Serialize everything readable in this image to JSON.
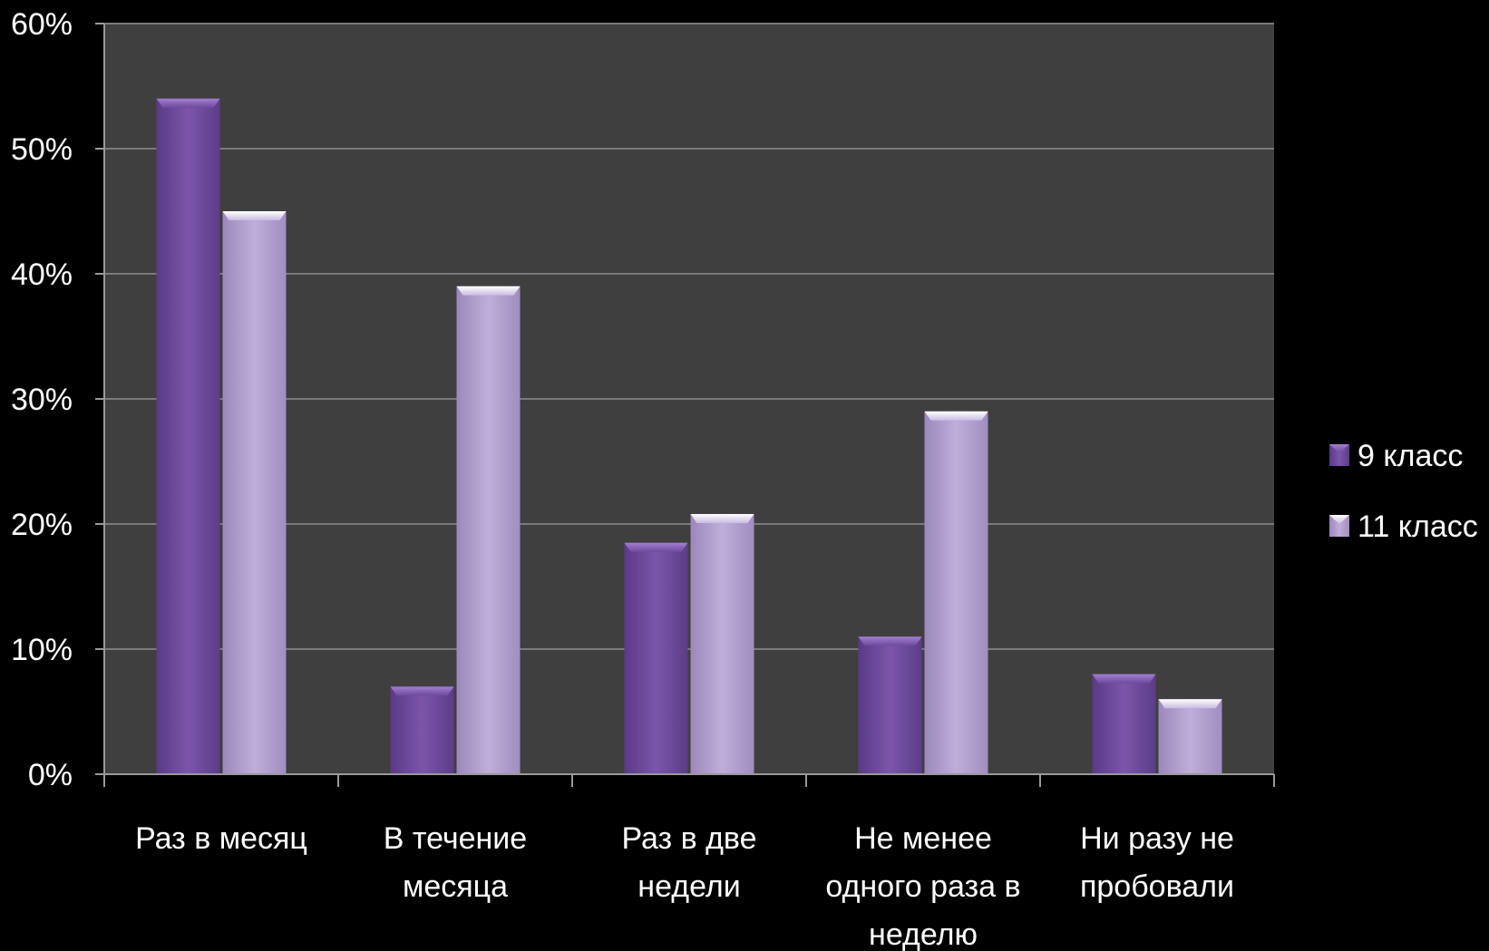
{
  "chart_data": {
    "type": "bar",
    "categories": [
      "Раз в месяц",
      "В течение месяца",
      "Раз в две недели",
      "Не менее одного раза в неделю",
      "Ни разу не пробовали"
    ],
    "category_lines": [
      [
        "Раз в месяц"
      ],
      [
        "В течение",
        "месяца"
      ],
      [
        "Раз в две",
        "недели"
      ],
      [
        "Не менее",
        "одного раза в",
        "неделю"
      ],
      [
        "Ни разу не",
        "пробовали"
      ]
    ],
    "series": [
      {
        "name": "9 класс",
        "values": [
          54,
          7,
          18.5,
          11,
          8
        ],
        "color": "#6f4a9c"
      },
      {
        "name": "11 класс",
        "values": [
          45,
          39,
          20.8,
          29,
          6
        ],
        "color": "#b3a0d0"
      }
    ],
    "y_ticks": [
      "0%",
      "10%",
      "20%",
      "30%",
      "40%",
      "50%",
      "60%"
    ],
    "ylim": [
      0,
      60
    ],
    "unit": "%",
    "grid": true,
    "legend_position": "right",
    "colors": {
      "plot_background": "#3f3f3f",
      "frame_background": "#000000",
      "gridline": "#7a7a7a",
      "text": "#ffffff"
    }
  }
}
